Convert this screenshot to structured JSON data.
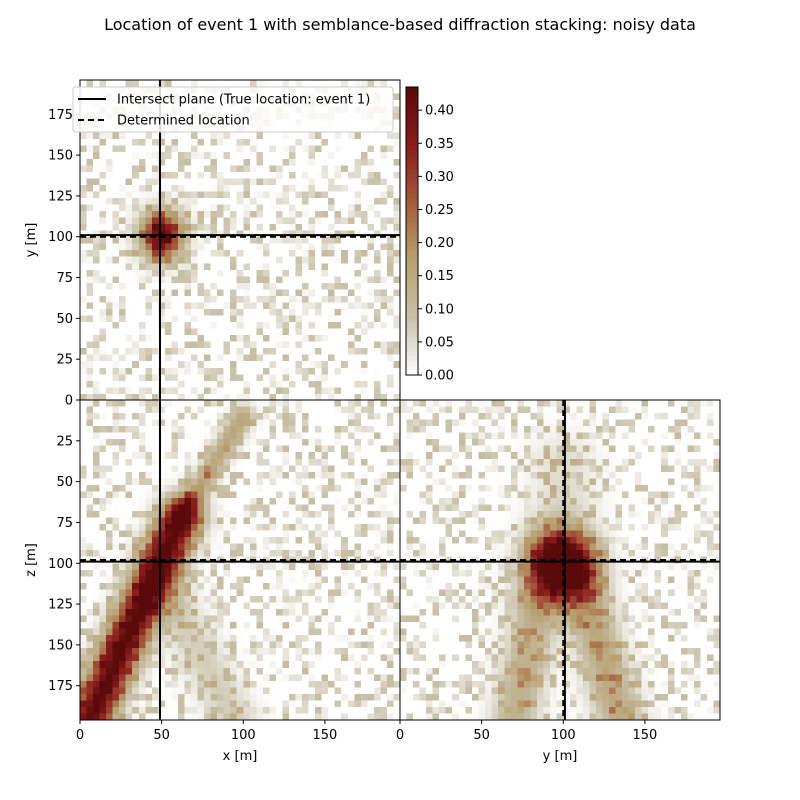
{
  "chart_data": {
    "type": "heatmap",
    "title": "Location of event 1 with semblance-based diffraction stacking: noisy data",
    "colormap": [
      "#ffffff",
      "#c8c0a8",
      "#b8a070",
      "#a55c3c",
      "#8b1c1c",
      "#5a0a0a"
    ],
    "colorbar": {
      "ticks": [
        0.0,
        0.05,
        0.1,
        0.15,
        0.2,
        0.25,
        0.3,
        0.35,
        0.4
      ],
      "tick_labels": [
        "0.00",
        "0.05",
        "0.10",
        "0.15",
        "0.20",
        "0.25",
        "0.30",
        "0.35",
        "0.40"
      ],
      "vmin": 0.0,
      "vmax": 0.435
    },
    "legend": {
      "placement": "top-left",
      "entries": [
        {
          "label": "Intersect plane (True location: event 1)",
          "style": "solid"
        },
        {
          "label": "Determined location",
          "style": "dashed"
        }
      ]
    },
    "grid_step": 4,
    "true_location": {
      "x": 49,
      "y": 101,
      "z": 99
    },
    "determined_location": {
      "x": 49,
      "y": 100,
      "z": 98
    },
    "panels": [
      {
        "id": "xy",
        "xlabel": "",
        "ylabel": "y [m]",
        "xlim": [
          0,
          196
        ],
        "ylim": [
          0,
          196
        ],
        "xticks": [],
        "yticks": [
          0,
          25,
          50,
          75,
          100,
          125,
          150,
          175
        ],
        "features": [
          {
            "kind": "blob",
            "cx": 50,
            "cy": 101,
            "sx": 9,
            "sy": 10,
            "amp": 0.43
          }
        ]
      },
      {
        "id": "xz",
        "xlabel": "x [m]",
        "ylabel": "z [m]",
        "xlim": [
          0,
          196
        ],
        "ylim": [
          196,
          0
        ],
        "xticks": [
          0,
          50,
          100,
          150
        ],
        "yticks": [
          25,
          50,
          75,
          100,
          125,
          150,
          175
        ],
        "features": [
          {
            "kind": "band",
            "x0": 6,
            "y0": 196,
            "x1": 62,
            "y1": 72,
            "w": 9,
            "amp": 0.43
          },
          {
            "kind": "band",
            "x0": 62,
            "y0": 72,
            "x1": 100,
            "y1": 10,
            "w": 5,
            "amp": 0.16
          },
          {
            "kind": "band",
            "x0": 50,
            "y0": 110,
            "x1": 95,
            "y1": 196,
            "w": 10,
            "amp": 0.07
          }
        ]
      },
      {
        "id": "yz",
        "xlabel": "y [m]",
        "ylabel": "",
        "xlim": [
          0,
          196
        ],
        "ylim": [
          196,
          0
        ],
        "xticks": [
          0,
          50,
          100,
          150
        ],
        "yticks": [],
        "features": [
          {
            "kind": "blob",
            "cx": 99,
            "cy": 103,
            "sx": 13,
            "sy": 15,
            "amp": 0.43
          },
          {
            "kind": "band",
            "x0": 90,
            "y0": 95,
            "x1": 70,
            "y1": 196,
            "w": 10,
            "amp": 0.13
          },
          {
            "kind": "band",
            "x0": 108,
            "y0": 100,
            "x1": 135,
            "y1": 196,
            "w": 10,
            "amp": 0.15
          },
          {
            "kind": "band",
            "x0": 100,
            "y0": 40,
            "x1": 100,
            "y1": 95,
            "w": 14,
            "amp": 0.05
          }
        ]
      }
    ]
  }
}
